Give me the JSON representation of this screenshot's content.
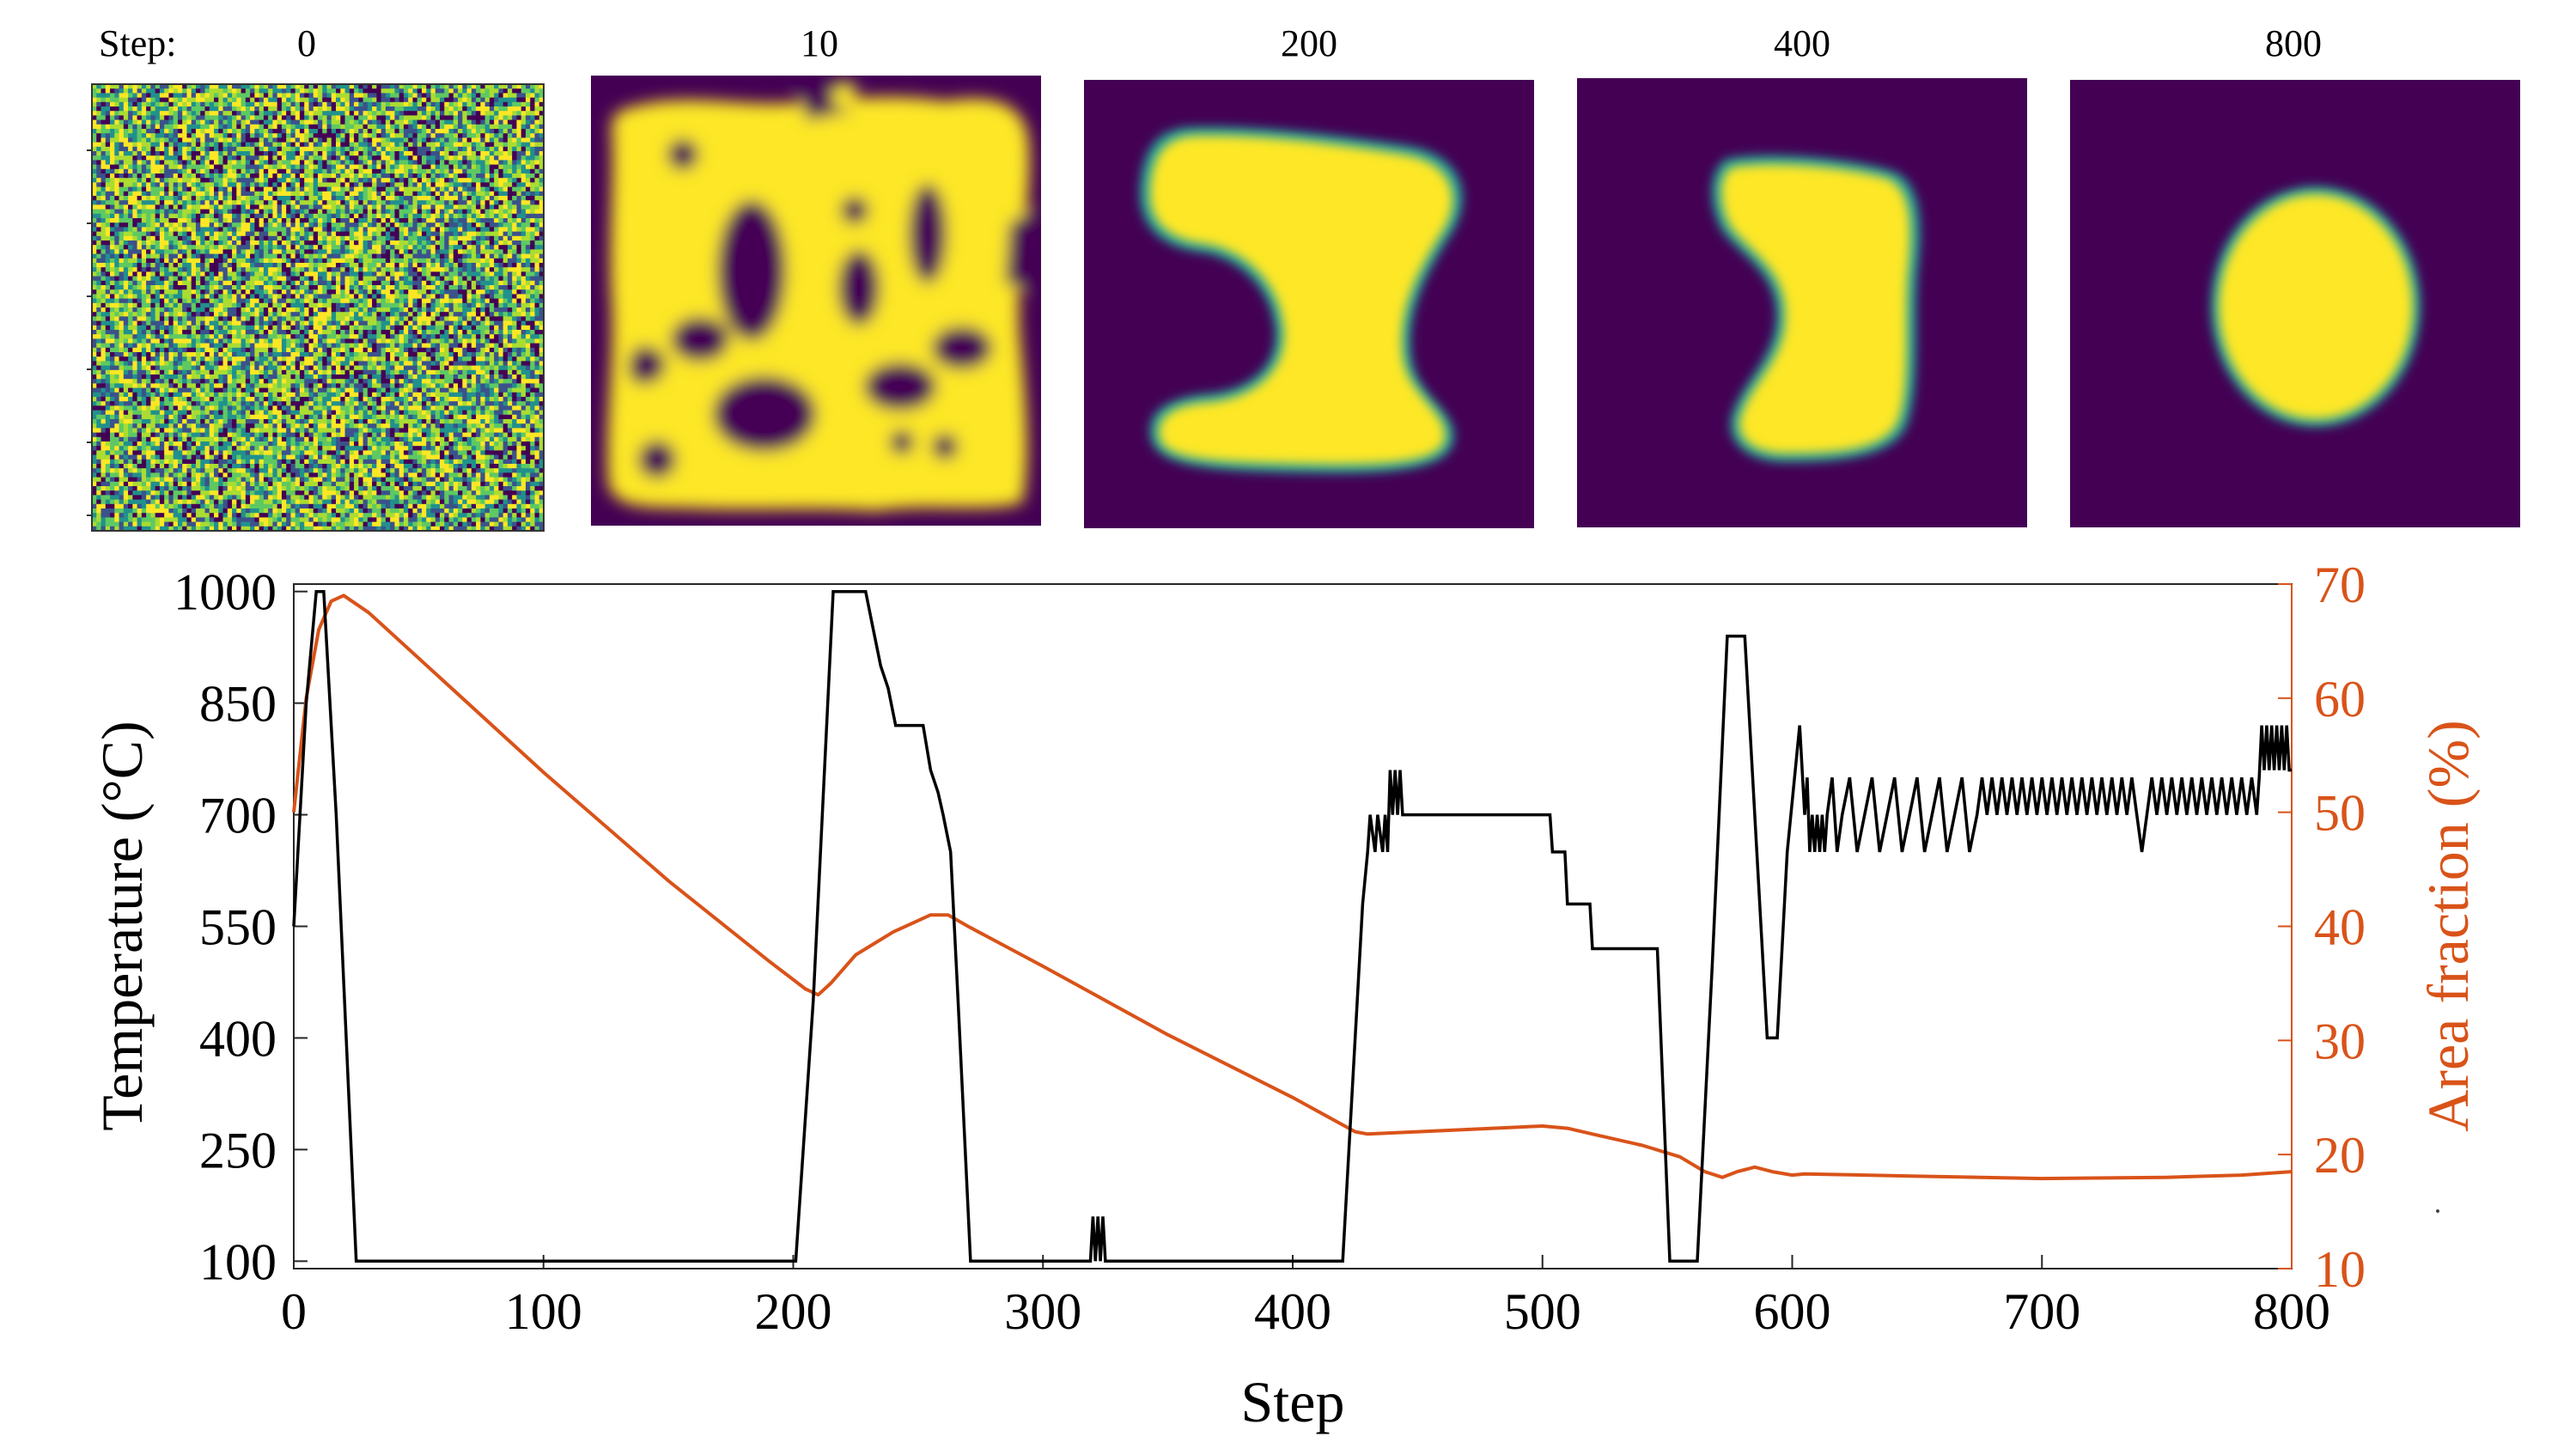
{
  "colors": {
    "temperature": "#000000",
    "area": "#d95319",
    "phase_a": "#440154",
    "phase_b": "#fde725",
    "interface": "#21a19a",
    "noise": [
      "#440154",
      "#3b528b",
      "#21918c",
      "#5ec962",
      "#aadc32",
      "#fde725"
    ]
  },
  "snapshots": {
    "step_label": "Step:",
    "panels": [
      {
        "step": "0",
        "kind": "noise"
      },
      {
        "step": "10",
        "kind": "spinodal"
      },
      {
        "step": "200",
        "kind": "dogbone"
      },
      {
        "step": "400",
        "kind": "kidney"
      },
      {
        "step": "800",
        "kind": "circle"
      }
    ]
  },
  "chart_data": {
    "type": "line",
    "xlabel": "Step",
    "ylabel_left": "Temperature (°C)",
    "ylabel_right": "Area fraction (%)",
    "xlim": [
      0,
      800
    ],
    "ylim_left": [
      90,
      1010
    ],
    "ylim_right": [
      10,
      70
    ],
    "xticks": [
      0,
      100,
      200,
      300,
      400,
      500,
      600,
      700,
      800
    ],
    "yticks_left": [
      100,
      250,
      400,
      550,
      700,
      850,
      1000
    ],
    "yticks_right": [
      10,
      20,
      30,
      40,
      50,
      60,
      70
    ],
    "series": [
      {
        "name": "Temperature",
        "axis": "left",
        "points": [
          [
            0,
            550
          ],
          [
            5,
            850
          ],
          [
            9,
            1000
          ],
          [
            12,
            1000
          ],
          [
            17,
            700
          ],
          [
            25,
            100
          ],
          [
            100,
            100
          ],
          [
            201,
            100
          ],
          [
            208,
            450
          ],
          [
            216,
            1000
          ],
          [
            229,
            1000
          ],
          [
            232,
            950
          ],
          [
            235,
            900
          ],
          [
            238,
            870
          ],
          [
            241,
            820
          ],
          [
            252,
            820
          ],
          [
            255,
            760
          ],
          [
            258,
            730
          ],
          [
            260,
            700
          ],
          [
            263,
            650
          ],
          [
            266,
            450
          ],
          [
            271,
            100
          ],
          [
            319,
            100
          ],
          [
            320,
            160
          ],
          [
            321,
            100
          ],
          [
            322,
            160
          ],
          [
            323,
            100
          ],
          [
            324,
            160
          ],
          [
            325,
            100
          ],
          [
            350,
            100
          ],
          [
            420,
            100
          ],
          [
            425,
            400
          ],
          [
            428,
            580
          ],
          [
            430,
            650
          ],
          [
            431,
            700
          ],
          [
            433,
            650
          ],
          [
            434,
            700
          ],
          [
            436,
            650
          ],
          [
            437,
            700
          ],
          [
            438,
            650
          ],
          [
            439,
            760
          ],
          [
            440,
            700
          ],
          [
            441,
            760
          ],
          [
            442,
            700
          ],
          [
            443,
            760
          ],
          [
            444,
            700
          ],
          [
            460,
            700
          ],
          [
            500,
            700
          ],
          [
            503,
            700
          ],
          [
            504,
            650
          ],
          [
            509,
            650
          ],
          [
            510,
            580
          ],
          [
            519,
            580
          ],
          [
            520,
            520
          ],
          [
            546,
            520
          ],
          [
            551,
            100
          ],
          [
            562,
            100
          ],
          [
            568,
            500
          ],
          [
            574,
            940
          ],
          [
            581,
            940
          ],
          [
            585,
            700
          ],
          [
            590,
            400
          ],
          [
            594,
            400
          ],
          [
            598,
            650
          ],
          [
            603,
            820
          ],
          [
            605,
            700
          ],
          [
            606,
            750
          ],
          [
            607,
            650
          ],
          [
            608,
            700
          ],
          [
            609,
            650
          ],
          [
            610,
            700
          ],
          [
            611,
            650
          ],
          [
            612,
            700
          ],
          [
            613,
            650
          ],
          [
            614,
            700
          ],
          [
            616,
            750
          ],
          [
            618,
            650
          ],
          [
            620,
            700
          ],
          [
            623,
            750
          ],
          [
            626,
            650
          ],
          [
            629,
            700
          ],
          [
            632,
            750
          ],
          [
            635,
            650
          ],
          [
            638,
            700
          ],
          [
            641,
            750
          ],
          [
            644,
            650
          ],
          [
            647,
            700
          ],
          [
            650,
            750
          ],
          [
            653,
            650
          ],
          [
            656,
            700
          ],
          [
            659,
            750
          ],
          [
            662,
            650
          ],
          [
            665,
            700
          ],
          [
            668,
            750
          ],
          [
            671,
            650
          ],
          [
            674,
            700
          ],
          [
            676,
            750
          ],
          [
            678,
            700
          ],
          [
            680,
            750
          ],
          [
            682,
            700
          ],
          [
            684,
            750
          ],
          [
            686,
            700
          ],
          [
            688,
            750
          ],
          [
            690,
            700
          ],
          [
            692,
            750
          ],
          [
            694,
            700
          ],
          [
            696,
            750
          ],
          [
            698,
            700
          ],
          [
            700,
            750
          ],
          [
            702,
            700
          ],
          [
            704,
            750
          ],
          [
            706,
            700
          ],
          [
            708,
            750
          ],
          [
            710,
            700
          ],
          [
            712,
            750
          ],
          [
            714,
            700
          ],
          [
            716,
            750
          ],
          [
            718,
            700
          ],
          [
            720,
            750
          ],
          [
            722,
            700
          ],
          [
            724,
            750
          ],
          [
            726,
            700
          ],
          [
            728,
            750
          ],
          [
            730,
            700
          ],
          [
            732,
            750
          ],
          [
            734,
            700
          ],
          [
            736,
            750
          ],
          [
            738,
            700
          ],
          [
            740,
            650
          ],
          [
            742,
            700
          ],
          [
            744,
            750
          ],
          [
            746,
            700
          ],
          [
            748,
            750
          ],
          [
            750,
            700
          ],
          [
            752,
            750
          ],
          [
            754,
            700
          ],
          [
            756,
            750
          ],
          [
            758,
            700
          ],
          [
            760,
            750
          ],
          [
            762,
            700
          ],
          [
            764,
            750
          ],
          [
            766,
            700
          ],
          [
            768,
            750
          ],
          [
            770,
            700
          ],
          [
            772,
            750
          ],
          [
            774,
            700
          ],
          [
            776,
            750
          ],
          [
            778,
            700
          ],
          [
            780,
            750
          ],
          [
            782,
            700
          ],
          [
            784,
            750
          ],
          [
            786,
            700
          ],
          [
            787,
            750
          ],
          [
            788,
            820
          ],
          [
            789,
            760
          ],
          [
            790,
            820
          ],
          [
            791,
            760
          ],
          [
            792,
            820
          ],
          [
            793,
            760
          ],
          [
            794,
            820
          ],
          [
            795,
            760
          ],
          [
            796,
            820
          ],
          [
            797,
            760
          ],
          [
            798,
            820
          ],
          [
            799,
            760
          ],
          [
            800,
            760
          ]
        ]
      },
      {
        "name": "Area fraction",
        "axis": "right",
        "points": [
          [
            0,
            50
          ],
          [
            5,
            60
          ],
          [
            10,
            66
          ],
          [
            15,
            68.5
          ],
          [
            20,
            69
          ],
          [
            30,
            67.5
          ],
          [
            50,
            63.5
          ],
          [
            100,
            53.5
          ],
          [
            150,
            44
          ],
          [
            190,
            37
          ],
          [
            205,
            34.5
          ],
          [
            210,
            34
          ],
          [
            215,
            35
          ],
          [
            225,
            37.5
          ],
          [
            240,
            39.5
          ],
          [
            255,
            41
          ],
          [
            262,
            41
          ],
          [
            270,
            40
          ],
          [
            300,
            36.5
          ],
          [
            350,
            30.5
          ],
          [
            400,
            25
          ],
          [
            425,
            22
          ],
          [
            430,
            21.8
          ],
          [
            450,
            22
          ],
          [
            500,
            22.5
          ],
          [
            510,
            22.3
          ],
          [
            520,
            21.8
          ],
          [
            540,
            20.8
          ],
          [
            555,
            19.8
          ],
          [
            565,
            18.5
          ],
          [
            572,
            18
          ],
          [
            578,
            18.5
          ],
          [
            585,
            18.9
          ],
          [
            592,
            18.5
          ],
          [
            600,
            18.2
          ],
          [
            605,
            18.3
          ],
          [
            650,
            18.1
          ],
          [
            700,
            17.9
          ],
          [
            750,
            18
          ],
          [
            780,
            18.2
          ],
          [
            800,
            18.5
          ]
        ]
      }
    ]
  }
}
